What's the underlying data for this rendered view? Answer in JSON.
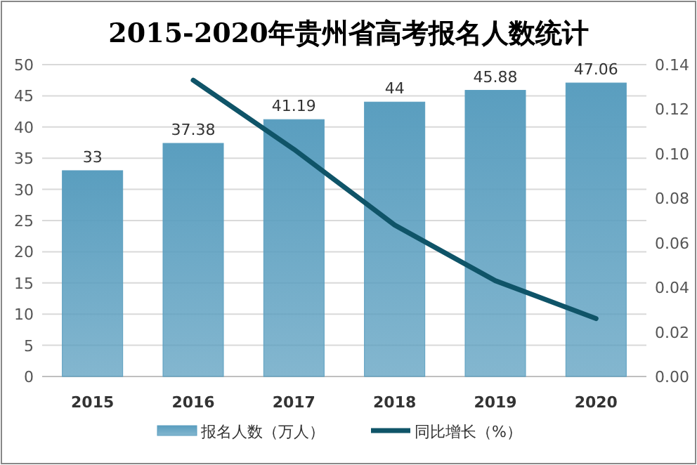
{
  "chart_data": {
    "type": "bar",
    "title": "2015-2020年贵州省高考报名人数统计",
    "categories": [
      "2015",
      "2016",
      "2017",
      "2018",
      "2019",
      "2020"
    ],
    "series": [
      {
        "name": "报名人数（万人）",
        "color": "#5a9ebf",
        "values": [
          33,
          37.38,
          41.19,
          44,
          45.88,
          47.06
        ],
        "value_labels": [
          "33",
          "37.38",
          "41.19",
          "44",
          "45.88",
          "47.06"
        ]
      },
      {
        "name": "同比增长（%）",
        "type": "line",
        "axis": "y2",
        "color": "#0f5468",
        "values": [
          null,
          0.133,
          0.102,
          0.068,
          0.043,
          0.026
        ]
      }
    ],
    "ylim": [
      0,
      50
    ],
    "yticks": [
      0,
      5,
      10,
      15,
      20,
      25,
      30,
      35,
      40,
      45,
      50
    ],
    "y2lim": [
      0,
      0.14
    ],
    "y2ticks": [
      {
        "value": 0,
        "label": "0.00"
      },
      {
        "value": 0.02,
        "label": "0.02"
      },
      {
        "value": 0.04,
        "label": "0.04"
      },
      {
        "value": 0.06,
        "label": "0.06"
      },
      {
        "value": 0.08,
        "label": "0.08"
      },
      {
        "value": 0.1,
        "label": "0.10"
      },
      {
        "value": 0.12,
        "label": "0.12"
      },
      {
        "value": 0.14,
        "label": "0.14"
      }
    ],
    "grid": "y",
    "legend": "bottom"
  }
}
